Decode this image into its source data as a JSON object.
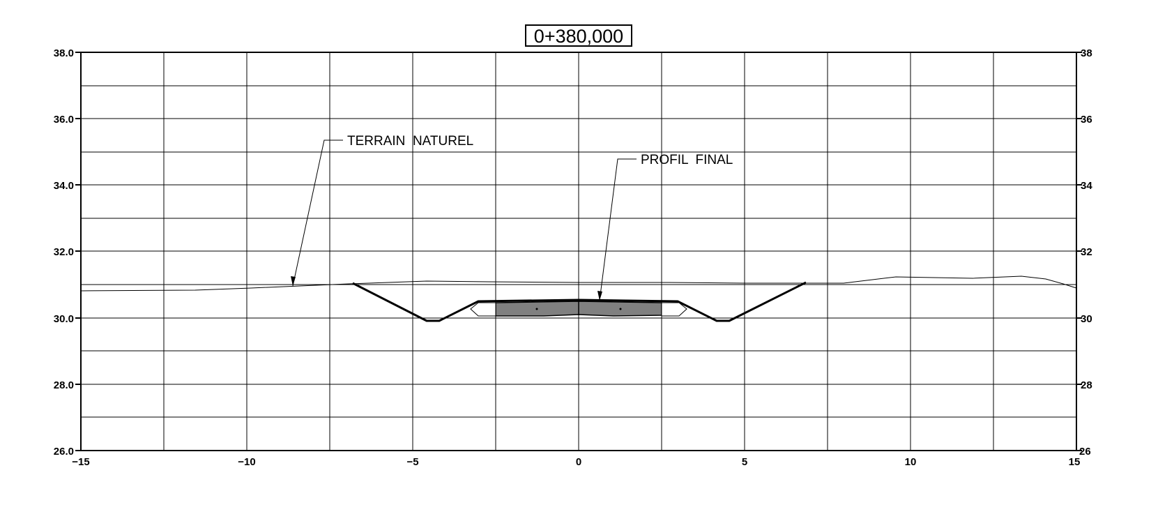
{
  "title": "0+380,000",
  "x_ticks": [
    "−15",
    "−10",
    "−5",
    "0",
    "5",
    "10",
    "15"
  ],
  "y_ticks_left": [
    "38.0",
    "36.0",
    "34.0",
    "32.0",
    "30.0",
    "28.0",
    "26.0"
  ],
  "y_ticks_right_clipped": [
    "38",
    "36",
    "34",
    "32",
    "30",
    "28",
    "26"
  ],
  "annotations": {
    "terrain": "TERRAIN  NATUREL",
    "profil": "PROFIL  FINAL"
  },
  "colors": {
    "line": "#000000",
    "pavement_fill": "#808080",
    "background": "#ffffff"
  }
}
